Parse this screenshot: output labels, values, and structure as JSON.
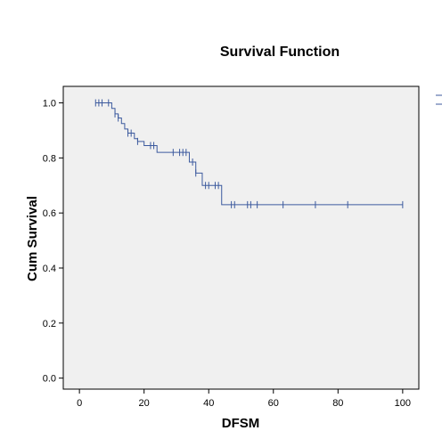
{
  "chart_data": {
    "type": "line",
    "subtype": "kaplan-meier step",
    "title": "Survival Function",
    "xlabel": "DFSM",
    "ylabel": "Cum Survival",
    "xlim": [
      -5,
      105
    ],
    "ylim": [
      -0.04,
      1.06
    ],
    "x_ticks": [
      0,
      20,
      40,
      60,
      80,
      100
    ],
    "y_ticks": [
      0.0,
      0.2,
      0.4,
      0.6,
      0.8,
      1.0
    ],
    "x_tick_labels": [
      "0",
      "20",
      "40",
      "60",
      "80",
      "100"
    ],
    "y_tick_labels": [
      "0.0",
      "0.2",
      "0.4",
      "0.6",
      "0.8",
      "1.0"
    ],
    "grid": false,
    "legend_position": "right (partially cut off)",
    "colors": {
      "series": "#3c5a9e",
      "plot_background": "#f0f0f0",
      "axis": "#000000"
    },
    "series": [
      {
        "steps": [
          [
            5,
            1.0
          ],
          [
            10,
            0.98
          ],
          [
            11,
            0.96
          ],
          [
            12,
            0.945
          ],
          [
            13,
            0.925
          ],
          [
            14,
            0.905
          ],
          [
            15,
            0.89
          ],
          [
            17,
            0.87
          ],
          [
            18,
            0.86
          ],
          [
            20,
            0.845
          ],
          [
            24,
            0.82
          ],
          [
            34,
            0.785
          ],
          [
            36,
            0.745
          ],
          [
            38,
            0.7
          ],
          [
            44,
            0.63
          ],
          [
            100,
            0.63
          ]
        ],
        "censored": [
          [
            5,
            1.0
          ],
          [
            6,
            1.0
          ],
          [
            7,
            1.0
          ],
          [
            9,
            1.0
          ],
          [
            11,
            0.96
          ],
          [
            12,
            0.945
          ],
          [
            15,
            0.89
          ],
          [
            16,
            0.89
          ],
          [
            18,
            0.86
          ],
          [
            22,
            0.845
          ],
          [
            23,
            0.845
          ],
          [
            29,
            0.82
          ],
          [
            31,
            0.82
          ],
          [
            32,
            0.82
          ],
          [
            33,
            0.82
          ],
          [
            35,
            0.785
          ],
          [
            36,
            0.745
          ],
          [
            39,
            0.7
          ],
          [
            40,
            0.7
          ],
          [
            42,
            0.7
          ],
          [
            43,
            0.7
          ],
          [
            47,
            0.63
          ],
          [
            48,
            0.63
          ],
          [
            52,
            0.63
          ],
          [
            53,
            0.63
          ],
          [
            55,
            0.63
          ],
          [
            63,
            0.63
          ],
          [
            73,
            0.63
          ],
          [
            83,
            0.63
          ],
          [
            100,
            0.63
          ]
        ]
      }
    ]
  }
}
